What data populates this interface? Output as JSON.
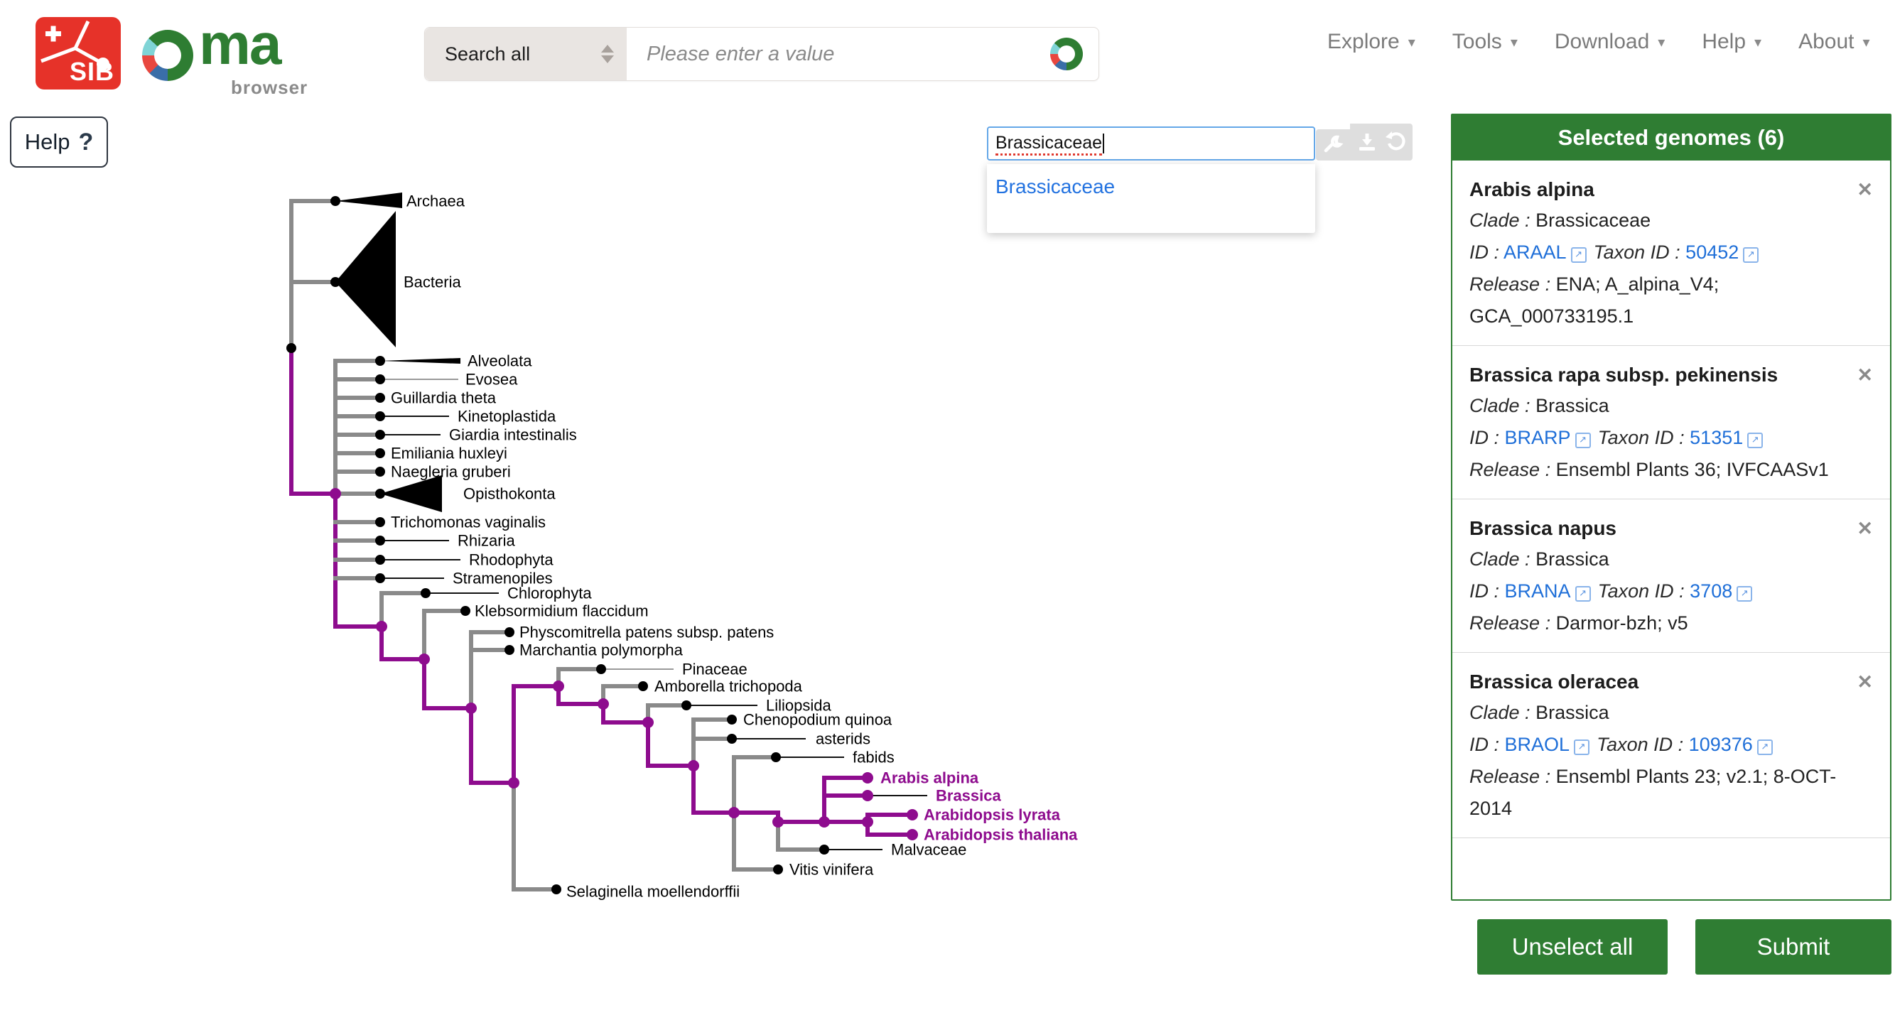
{
  "header": {
    "sib_label": "SIB",
    "oma_ma": "ma",
    "oma_browser": "browser",
    "search_scope": "Search all",
    "search_placeholder": "Please enter a value",
    "caret": "▾",
    "nav": [
      {
        "label": "Explore"
      },
      {
        "label": "Tools"
      },
      {
        "label": "Download"
      },
      {
        "label": "Help"
      },
      {
        "label": "About"
      }
    ]
  },
  "help_button": {
    "label": "Help",
    "icon": "?"
  },
  "genome_search": {
    "value": "Brassicaceae",
    "suggestions": [
      "Brassicaceae"
    ],
    "icons": [
      "wrench-icon",
      "download-icon",
      "undo-icon"
    ]
  },
  "selected_panel": {
    "title": "Selected genomes (6)",
    "close_icon": "✕",
    "ext_icon": "↗",
    "labels": {
      "clade": "Clade :",
      "id": "ID :",
      "taxon": "Taxon ID :",
      "release": "Release :"
    },
    "genomes": [
      {
        "name": "Arabis alpina",
        "clade": "Brassicaceae",
        "id": "ARAAL",
        "taxon_id": "50452",
        "release": "ENA; A_alpina_V4; GCA_000733195.1"
      },
      {
        "name": "Brassica rapa subsp. pekinensis",
        "clade": "Brassica",
        "id": "BRARP",
        "taxon_id": "51351",
        "release": "Ensembl Plants 36; IVFCAASv1"
      },
      {
        "name": "Brassica napus",
        "clade": "Brassica",
        "id": "BRANA",
        "taxon_id": "3708",
        "release": "Darmor-bzh; v5"
      },
      {
        "name": "Brassica oleracea",
        "clade": "Brassica",
        "id": "BRAOL",
        "taxon_id": "109376",
        "release": "Ensembl Plants 23; v2.1; 8-OCT-2014"
      }
    ],
    "unselect_label": "Unselect all",
    "submit_label": "Submit"
  },
  "colors": {
    "green": "#2f7d33",
    "purple": "#8e0c8e",
    "branch_gray": "#8a8a8a",
    "tip_black": "#111111",
    "tip_light": "#999999",
    "link_blue": "#1f6fd8",
    "suggestion_blue": "#2272e0"
  },
  "tree": {
    "segments": [
      [
        "g",
        410,
        283,
        410,
        397
      ],
      [
        "g",
        410,
        283,
        472,
        283
      ],
      [
        "g",
        410,
        397,
        472,
        397
      ],
      [
        "g",
        410,
        397,
        410,
        490
      ],
      [
        "p",
        410,
        490,
        410,
        695
      ],
      [
        "p",
        410,
        695,
        472,
        695
      ],
      [
        "g",
        472,
        508,
        472,
        695
      ],
      [
        "g",
        472,
        508,
        535,
        508
      ],
      [
        "g",
        472,
        534,
        535,
        534
      ],
      [
        "g",
        472,
        560,
        535,
        560
      ],
      [
        "g",
        472,
        586,
        535,
        586
      ],
      [
        "g",
        472,
        612,
        535,
        612
      ],
      [
        "g",
        472,
        638,
        535,
        638
      ],
      [
        "g",
        472,
        664,
        535,
        664
      ],
      [
        "g",
        472,
        695,
        535,
        695
      ],
      [
        "p",
        472,
        695,
        472,
        882
      ],
      [
        "g",
        472,
        735,
        535,
        735
      ],
      [
        "g",
        472,
        761,
        535,
        761
      ],
      [
        "g",
        472,
        788,
        535,
        788
      ],
      [
        "g",
        472,
        814,
        535,
        814
      ],
      [
        "p",
        472,
        882,
        537,
        882
      ],
      [
        "g",
        537,
        835,
        537,
        882
      ],
      [
        "g",
        537,
        835,
        599,
        835
      ],
      [
        "p",
        537,
        882,
        537,
        928
      ],
      [
        "p",
        537,
        928,
        597,
        928
      ],
      [
        "g",
        597,
        860,
        597,
        928
      ],
      [
        "g",
        597,
        860,
        655,
        860
      ],
      [
        "p",
        597,
        928,
        597,
        997
      ],
      [
        "p",
        597,
        997,
        663,
        997
      ],
      [
        "g",
        663,
        890,
        663,
        997
      ],
      [
        "g",
        663,
        890,
        717,
        890
      ],
      [
        "g",
        663,
        915,
        717,
        915
      ],
      [
        "p",
        663,
        997,
        663,
        1102
      ],
      [
        "p",
        663,
        1102,
        723,
        1102
      ],
      [
        "g",
        723,
        1102,
        723,
        1252
      ],
      [
        "g",
        723,
        1252,
        783,
        1252
      ],
      [
        "p",
        723,
        966,
        723,
        1102
      ],
      [
        "p",
        723,
        966,
        786,
        966
      ],
      [
        "g",
        786,
        942,
        786,
        966
      ],
      [
        "g",
        786,
        942,
        846,
        942
      ],
      [
        "p",
        786,
        966,
        786,
        991
      ],
      [
        "p",
        786,
        991,
        849,
        991
      ],
      [
        "g",
        849,
        966,
        849,
        991
      ],
      [
        "g",
        849,
        966,
        905,
        966
      ],
      [
        "p",
        849,
        991,
        849,
        1017
      ],
      [
        "p",
        849,
        1017,
        912,
        1017
      ],
      [
        "g",
        912,
        993,
        912,
        1017
      ],
      [
        "g",
        912,
        993,
        966,
        993
      ],
      [
        "p",
        912,
        1017,
        912,
        1078
      ],
      [
        "p",
        912,
        1078,
        976,
        1078
      ],
      [
        "g",
        976,
        1013,
        976,
        1078
      ],
      [
        "g",
        976,
        1013,
        1030,
        1013
      ],
      [
        "g",
        976,
        1040,
        1030,
        1040
      ],
      [
        "p",
        976,
        1078,
        976,
        1144
      ],
      [
        "p",
        976,
        1144,
        1033,
        1144
      ],
      [
        "g",
        1033,
        1066,
        1033,
        1144
      ],
      [
        "g",
        1033,
        1066,
        1092,
        1066
      ],
      [
        "g",
        1033,
        1144,
        1033,
        1224
      ],
      [
        "g",
        1033,
        1224,
        1095,
        1224
      ],
      [
        "p",
        1033,
        1144,
        1095,
        1144
      ],
      [
        "p",
        1095,
        1144,
        1095,
        1157
      ],
      [
        "p",
        1095,
        1157,
        1160,
        1157
      ],
      [
        "g",
        1095,
        1157,
        1095,
        1196
      ],
      [
        "g",
        1095,
        1196,
        1160,
        1196
      ],
      [
        "p",
        1160,
        1095,
        1160,
        1157
      ],
      [
        "p",
        1160,
        1095,
        1221,
        1095
      ],
      [
        "p",
        1160,
        1120,
        1221,
        1120
      ],
      [
        "p",
        1160,
        1157,
        1221,
        1157
      ],
      [
        "p",
        1221,
        1147,
        1221,
        1175
      ],
      [
        "p",
        1221,
        1147,
        1284,
        1147
      ],
      [
        "p",
        1221,
        1175,
        1284,
        1175
      ]
    ],
    "thin_lines": [
      [
        "l",
        541,
        534,
        645,
        534
      ],
      [
        "k",
        541,
        586,
        632,
        586
      ],
      [
        "k",
        541,
        612,
        620,
        612
      ],
      [
        "k",
        541,
        761,
        632,
        761
      ],
      [
        "k",
        541,
        788,
        648,
        788
      ],
      [
        "k",
        541,
        814,
        625,
        814
      ],
      [
        "k",
        605,
        835,
        702,
        835
      ],
      [
        "l",
        852,
        942,
        948,
        942
      ],
      [
        "k",
        972,
        993,
        1066,
        993
      ],
      [
        "k",
        1036,
        1040,
        1134,
        1040
      ],
      [
        "k",
        1098,
        1066,
        1188,
        1066
      ],
      [
        "k",
        1227,
        1120,
        1305,
        1120
      ],
      [
        "k",
        1166,
        1196,
        1242,
        1196
      ]
    ],
    "triangles": [
      [
        472,
        283,
        566,
        271,
        293
      ],
      [
        472,
        397,
        557,
        297,
        489
      ],
      [
        535,
        508,
        648,
        504,
        512
      ],
      [
        535,
        695,
        622,
        669,
        721
      ]
    ],
    "dots": [
      [
        "k",
        410,
        490
      ],
      [
        "k",
        472,
        283
      ],
      [
        "k",
        472,
        397
      ],
      [
        "k",
        535,
        508
      ],
      [
        "k",
        535,
        534
      ],
      [
        "k",
        535,
        560
      ],
      [
        "k",
        535,
        586
      ],
      [
        "k",
        535,
        612
      ],
      [
        "k",
        535,
        638
      ],
      [
        "k",
        535,
        664
      ],
      [
        "k",
        535,
        695
      ],
      [
        "k",
        535,
        735
      ],
      [
        "k",
        535,
        761
      ],
      [
        "k",
        535,
        788
      ],
      [
        "k",
        535,
        814
      ],
      [
        "k",
        599,
        835
      ],
      [
        "k",
        655,
        860
      ],
      [
        "k",
        717,
        890
      ],
      [
        "k",
        717,
        915
      ],
      [
        "k",
        846,
        942
      ],
      [
        "k",
        905,
        966
      ],
      [
        "k",
        966,
        993
      ],
      [
        "k",
        1030,
        1013
      ],
      [
        "k",
        1030,
        1040
      ],
      [
        "k",
        1092,
        1066
      ],
      [
        "k",
        1160,
        1196
      ],
      [
        "k",
        1095,
        1224
      ],
      [
        "k",
        783,
        1252
      ],
      [
        "p",
        472,
        695
      ],
      [
        "p",
        537,
        882
      ],
      [
        "p",
        597,
        928
      ],
      [
        "p",
        663,
        997
      ],
      [
        "p",
        723,
        1102
      ],
      [
        "p",
        786,
        966
      ],
      [
        "p",
        849,
        991
      ],
      [
        "p",
        912,
        1017
      ],
      [
        "p",
        976,
        1078
      ],
      [
        "p",
        1033,
        1144
      ],
      [
        "p",
        1095,
        1157
      ],
      [
        "p",
        1160,
        1157
      ],
      [
        "p",
        1221,
        1157
      ],
      [
        "p",
        1221,
        1095
      ],
      [
        "p",
        1221,
        1120
      ],
      [
        "p",
        1284,
        1147
      ],
      [
        "p",
        1284,
        1175
      ]
    ],
    "labels": [
      [
        "Archaea",
        572,
        283,
        "k"
      ],
      [
        "Bacteria",
        568,
        397,
        "k"
      ],
      [
        "Alveolata",
        658,
        508,
        "k"
      ],
      [
        "Evosea",
        655,
        534,
        "k"
      ],
      [
        "Guillardia theta",
        550,
        560,
        "k"
      ],
      [
        "Kinetoplastida",
        644,
        586,
        "k"
      ],
      [
        "Giardia intestinalis",
        632,
        612,
        "k"
      ],
      [
        "Emiliania huxleyi",
        550,
        638,
        "k"
      ],
      [
        "Naegleria gruberi",
        550,
        664,
        "k"
      ],
      [
        "Opisthokonta",
        652,
        695,
        "k"
      ],
      [
        "Trichomonas vaginalis",
        550,
        735,
        "k"
      ],
      [
        "Rhizaria",
        644,
        761,
        "k"
      ],
      [
        "Rhodophyta",
        660,
        788,
        "k"
      ],
      [
        "Stramenopiles",
        637,
        814,
        "k"
      ],
      [
        "Chlorophyta",
        714,
        835,
        "k"
      ],
      [
        "Klebsormidium flaccidum",
        668,
        860,
        "k"
      ],
      [
        "Physcomitrella patens subsp. patens",
        731,
        890,
        "k"
      ],
      [
        "Marchantia polymorpha",
        731,
        915,
        "k"
      ],
      [
        "Pinaceae",
        960,
        942,
        "k"
      ],
      [
        "Amborella trichopoda",
        921,
        966,
        "k"
      ],
      [
        "Liliopsida",
        1078,
        993,
        "k"
      ],
      [
        "Chenopodium quinoa",
        1046,
        1013,
        "k"
      ],
      [
        "asterids",
        1148,
        1040,
        "k"
      ],
      [
        "fabids",
        1200,
        1066,
        "k"
      ],
      [
        "Arabis alpina",
        1239,
        1095,
        "p"
      ],
      [
        "Brassica",
        1317,
        1120,
        "p"
      ],
      [
        "Arabidopsis lyrata",
        1300,
        1147,
        "p"
      ],
      [
        "Arabidopsis thaliana",
        1300,
        1175,
        "p"
      ],
      [
        "Malvaceae",
        1254,
        1196,
        "k"
      ],
      [
        "Vitis vinifera",
        1111,
        1224,
        "k"
      ],
      [
        "Selaginella moellendorffii",
        797,
        1255,
        "k"
      ]
    ]
  }
}
